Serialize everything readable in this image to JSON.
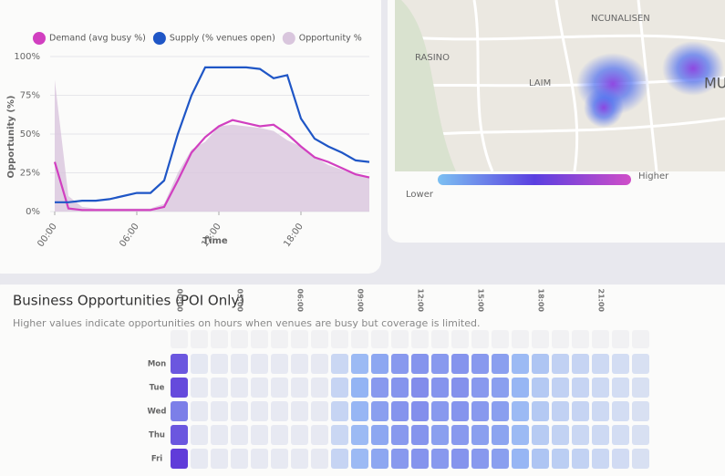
{
  "chart_data": {
    "type": "line",
    "x": [
      0,
      1,
      2,
      3,
      4,
      5,
      6,
      7,
      8,
      9,
      10,
      11,
      12,
      13,
      14,
      15,
      16,
      17,
      18,
      19,
      20,
      21,
      22,
      23
    ],
    "xlim": [
      0,
      23
    ],
    "xticks": [
      {
        "value": 0,
        "label": "00:00"
      },
      {
        "value": 6,
        "label": "06:00"
      },
      {
        "value": 12,
        "label": "12:00"
      },
      {
        "value": 18,
        "label": "18:00"
      }
    ],
    "ylim": [
      0,
      100
    ],
    "yticks": [
      {
        "value": 0,
        "label": "0%"
      },
      {
        "value": 25,
        "label": "25%"
      },
      {
        "value": 50,
        "label": "50%"
      },
      {
        "value": 75,
        "label": "75%"
      },
      {
        "value": 100,
        "label": "100%"
      }
    ],
    "y_label": "Opportunity (%)",
    "x_label": "Time",
    "series": [
      {
        "name": "Demand (avg busy %)",
        "color": "#d13fc0",
        "values": [
          32,
          2,
          1,
          1,
          1,
          1,
          1,
          1,
          3,
          20,
          38,
          48,
          55,
          59,
          57,
          55,
          56,
          50,
          42,
          35,
          32,
          28,
          24,
          22
        ]
      },
      {
        "name": "Supply (% venues open)",
        "color": "#1f56c6",
        "values": [
          6,
          6,
          7,
          7,
          8,
          10,
          12,
          12,
          20,
          50,
          75,
          93,
          93,
          93,
          93,
          92,
          86,
          88,
          60,
          47,
          42,
          38,
          33,
          32
        ]
      },
      {
        "name": "Opportunity %",
        "color": "#d9c6dd",
        "fill": true,
        "values": [
          85,
          10,
          3,
          2,
          2,
          2,
          2,
          2,
          5,
          25,
          40,
          45,
          55,
          56,
          55,
          54,
          52,
          46,
          42,
          35,
          30,
          27,
          24,
          22
        ]
      }
    ]
  },
  "map": {
    "labels": [
      "RASINO",
      "LAIM",
      "NCUNALISEN",
      "MU"
    ],
    "legend": {
      "low": "Lower",
      "high": "Higher"
    }
  },
  "heatmap": {
    "title": "Business Opportunities (POI Only)",
    "subtitle": "Higher values indicate opportunities on hours when venues are busy but coverage is limited.",
    "columns": [
      "00:00",
      null,
      null,
      "03:00",
      null,
      null,
      "06:00",
      null,
      null,
      "09:00",
      null,
      null,
      "12:00",
      null,
      null,
      "15:00",
      null,
      null,
      "18:00",
      null,
      null,
      "21:00",
      null,
      null
    ],
    "zlim": [
      0,
      100
    ],
    "colors": [
      "#eeeef2",
      "#93b4f4",
      "#5a2fd6"
    ],
    "rows": [
      {
        "label": "Mon",
        "values": [
          85,
          5,
          4,
          4,
          4,
          4,
          4,
          4,
          20,
          45,
          55,
          60,
          62,
          60,
          62,
          60,
          58,
          45,
          35,
          25,
          22,
          18,
          15,
          12
        ]
      },
      {
        "label": "Tue",
        "values": [
          90,
          4,
          4,
          4,
          4,
          4,
          4,
          4,
          22,
          50,
          60,
          62,
          65,
          62,
          63,
          60,
          58,
          48,
          32,
          25,
          22,
          18,
          15,
          12
        ]
      },
      {
        "label": "Wed",
        "values": [
          70,
          4,
          4,
          4,
          4,
          4,
          4,
          4,
          22,
          48,
          58,
          62,
          64,
          60,
          62,
          60,
          58,
          45,
          32,
          25,
          22,
          18,
          15,
          12
        ]
      },
      {
        "label": "Thu",
        "values": [
          85,
          4,
          4,
          4,
          4,
          4,
          4,
          4,
          20,
          45,
          55,
          60,
          62,
          58,
          60,
          58,
          56,
          45,
          30,
          24,
          20,
          18,
          15,
          12
        ]
      },
      {
        "label": "Fri",
        "values": [
          95,
          4,
          4,
          4,
          4,
          4,
          4,
          4,
          22,
          45,
          55,
          60,
          62,
          60,
          62,
          60,
          58,
          48,
          35,
          28,
          24,
          20,
          16,
          12
        ]
      }
    ]
  }
}
